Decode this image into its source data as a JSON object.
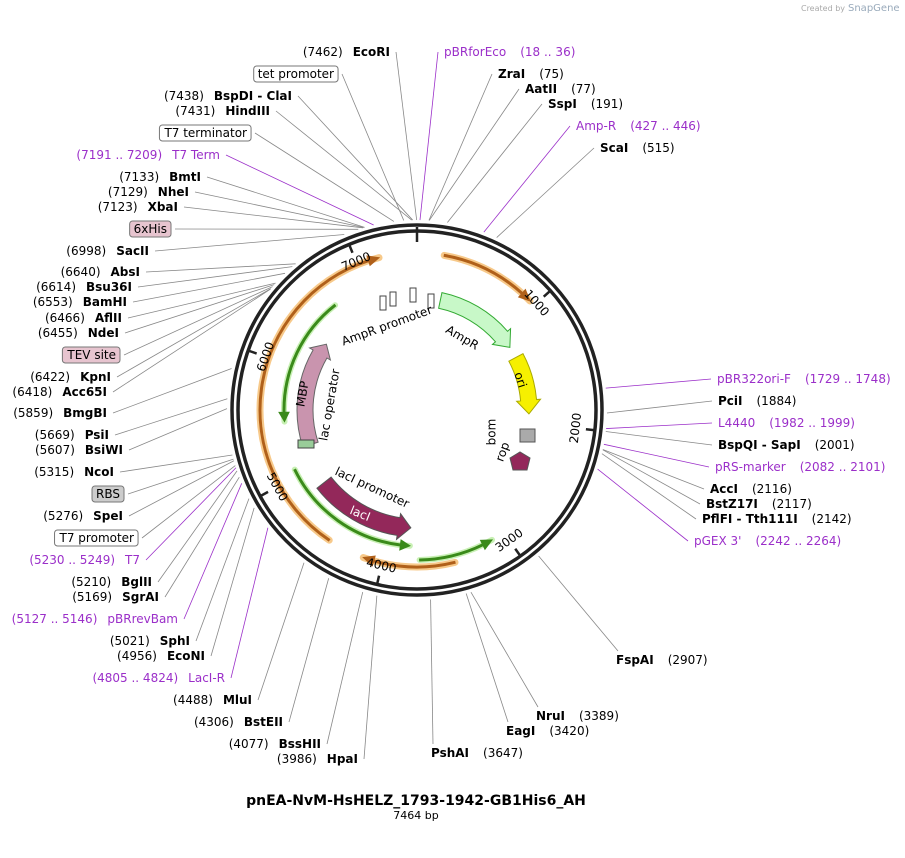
{
  "header": {
    "created_by": "Created by",
    "brand": "SnapGene"
  },
  "left_labels": [
    {
      "pos": "(7462)",
      "name": "EcoRI"
    },
    {
      "name": "tet promoter"
    },
    {
      "pos": "(7438)",
      "name": "BspDI - ClaI"
    },
    {
      "pos": "(7431)",
      "name": "HindIII"
    },
    {
      "name": "T7 terminator"
    },
    {
      "pos": "(7191 .. 7209)",
      "name": "T7 Term"
    },
    {
      "pos": "(7133)",
      "name": "BmtI"
    },
    {
      "pos": "(7129)",
      "name": "NheI"
    },
    {
      "pos": "(7123)",
      "name": "XbaI"
    },
    {
      "name": "6xHis"
    },
    {
      "pos": "(6998)",
      "name": "SacII"
    },
    {
      "pos": "(6640)",
      "name": "AbsI"
    },
    {
      "pos": "(6614)",
      "name": "Bsu36I"
    },
    {
      "pos": "(6553)",
      "name": "BamHI"
    },
    {
      "pos": "(6466)",
      "name": "AflII"
    },
    {
      "pos": "(6455)",
      "name": "NdeI"
    },
    {
      "name": "TEV site"
    },
    {
      "pos": "(6422)",
      "name": "KpnI"
    },
    {
      "pos": "(6418)",
      "name": "Acc65I"
    },
    {
      "pos": "(5859)",
      "name": "BmgBI"
    },
    {
      "pos": "(5669)",
      "name": "PsiI"
    },
    {
      "pos": "(5607)",
      "name": "BsiWI"
    },
    {
      "pos": "(5315)",
      "name": "NcoI"
    },
    {
      "name": "RBS"
    },
    {
      "pos": "(5276)",
      "name": "SpeI"
    },
    {
      "name": "T7 promoter"
    },
    {
      "pos": "(5230 .. 5249)",
      "name": "T7"
    },
    {
      "pos": "(5210)",
      "name": "BglII"
    },
    {
      "pos": "(5169)",
      "name": "SgrAI"
    },
    {
      "pos": "(5127 .. 5146)",
      "name": "pBRrevBam"
    },
    {
      "pos": "(5021)",
      "name": "SphI"
    },
    {
      "pos": "(4956)",
      "name": "EcoNI"
    },
    {
      "pos": "(4805 .. 4824)",
      "name": "LacI-R"
    },
    {
      "pos": "(4488)",
      "name": "MluI"
    },
    {
      "pos": "(4306)",
      "name": "BstEII"
    },
    {
      "pos": "(4077)",
      "name": "BssHII"
    },
    {
      "pos": "(3986)",
      "name": "HpaI"
    }
  ],
  "right_labels": [
    {
      "name": "pBRforEco",
      "pos": "(18 .. 36)"
    },
    {
      "name": "ZraI",
      "pos": "(75)"
    },
    {
      "name": "AatII",
      "pos": "(77)"
    },
    {
      "name": "SspI",
      "pos": "(191)"
    },
    {
      "name": "Amp-R",
      "pos": "(427 .. 446)"
    },
    {
      "name": "ScaI",
      "pos": "(515)"
    },
    {
      "name": "pBR322ori-F",
      "pos": "(1729 .. 1748)"
    },
    {
      "name": "PciI",
      "pos": "(1884)"
    },
    {
      "name": "L4440",
      "pos": "(1982 .. 1999)"
    },
    {
      "name": "BspQI - SapI",
      "pos": "(2001)"
    },
    {
      "name": "pRS-marker",
      "pos": "(2082 .. 2101)"
    },
    {
      "name": "AccI",
      "pos": "(2116)"
    },
    {
      "name": "BstZ17I",
      "pos": "(2117)"
    },
    {
      "name": "PflFI - Tth111I",
      "pos": "(2142)"
    },
    {
      "name": "pGEX 3'",
      "pos": "(2242 .. 2264)"
    },
    {
      "name": "FspAI",
      "pos": "(2907)"
    },
    {
      "name": "NruI",
      "pos": "(3389)"
    },
    {
      "name": "EagI",
      "pos": "(3420)"
    },
    {
      "name": "PshAI",
      "pos": "(3647)"
    }
  ],
  "ring_ticks": [
    "1000",
    "2000",
    "3000",
    "4000",
    "5000",
    "6000",
    "7000"
  ],
  "feature_labels": [
    "AmpR promoter",
    "AmpR",
    "ori",
    "bom",
    "rop",
    "lacI promoter",
    "lacI",
    "lac operator",
    "MBP"
  ],
  "footer": {
    "title": "pnEA-NvM-HsHELZ_1793-1942-GB1His6_AH",
    "length": "7464 bp"
  }
}
